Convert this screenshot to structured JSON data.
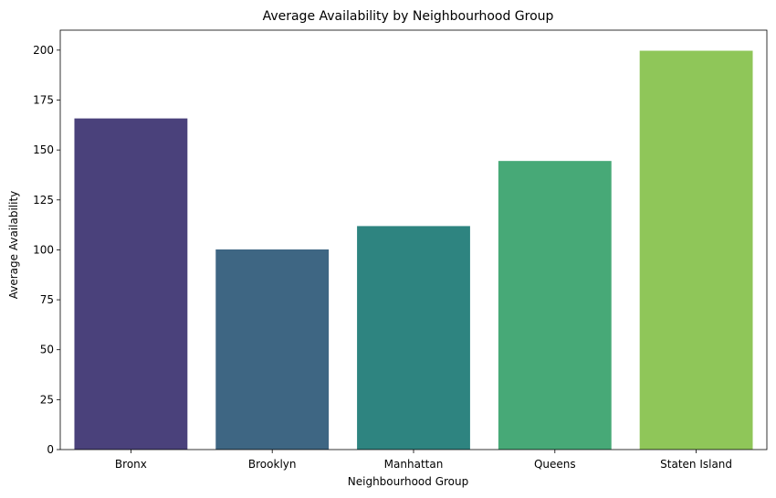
{
  "chart_data": {
    "type": "bar",
    "title": "Average Availability by Neighbourhood Group",
    "xlabel": "Neighbourhood Group",
    "ylabel": "Average Availability",
    "categories": [
      "Bronx",
      "Brooklyn",
      "Manhattan",
      "Queens",
      "Staten Island"
    ],
    "values": [
      165.8,
      100.2,
      111.9,
      144.5,
      199.7
    ],
    "colors": [
      "#4a417b",
      "#3e6683",
      "#2e8480",
      "#47a977",
      "#8fc659"
    ],
    "ylim": [
      0,
      210
    ],
    "yticks": [
      0,
      25,
      50,
      75,
      100,
      125,
      150,
      175,
      200
    ],
    "grid": false,
    "legend": "none"
  }
}
